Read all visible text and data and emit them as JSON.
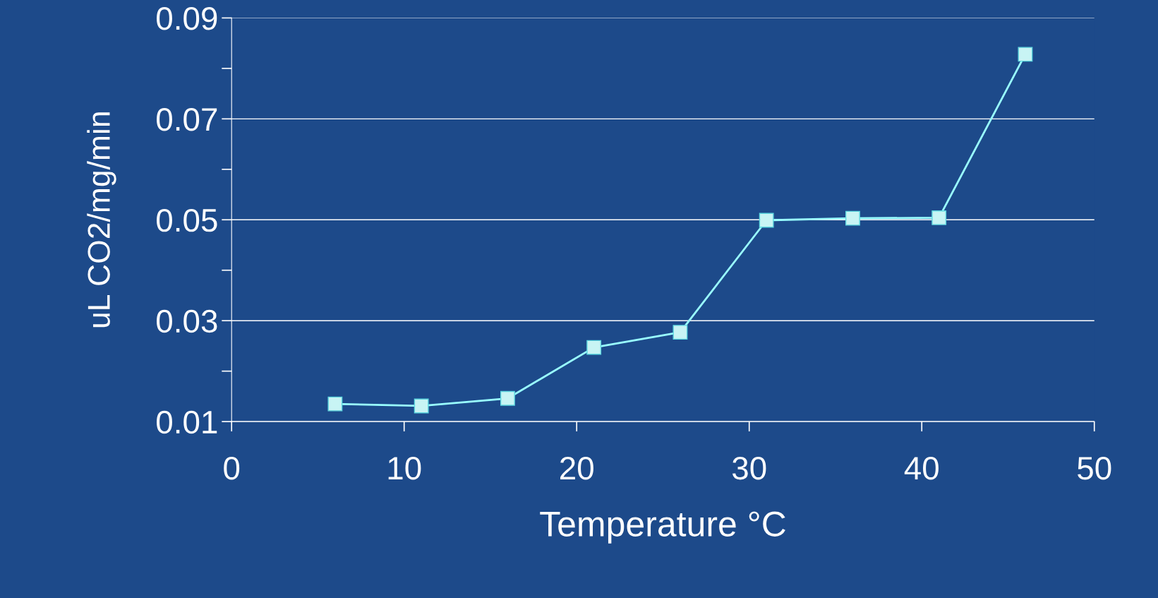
{
  "chart_data": {
    "type": "line",
    "xlabel": "Temperature °C",
    "ylabel": "uL CO2/mg/min",
    "x": [
      6,
      11,
      16,
      21,
      26,
      31,
      36,
      41,
      46
    ],
    "series": [
      {
        "color": "#99ffff",
        "values": [
          0.0135,
          0.0131,
          0.0146,
          0.0247,
          0.0277,
          0.0499,
          0.0503,
          0.0504,
          0.0828
        ]
      }
    ],
    "xlim": [
      0,
      50
    ],
    "xticks": [
      0,
      10,
      20,
      30,
      40,
      50
    ],
    "ylim": [
      0.01,
      0.09
    ],
    "yticks": [
      {
        "value": 0.01,
        "label": "0.01"
      },
      {
        "value": 0.02,
        "label": null
      },
      {
        "value": 0.03,
        "label": "0.03"
      },
      {
        "value": 0.04,
        "label": null
      },
      {
        "value": 0.05,
        "label": "0.05"
      },
      {
        "value": 0.06,
        "label": null
      },
      {
        "value": 0.07,
        "label": "0.07"
      },
      {
        "value": 0.08,
        "label": null
      },
      {
        "value": 0.09,
        "label": "0.09"
      }
    ],
    "grid": "y",
    "marker": "square",
    "line_style": "solid",
    "legend": false
  }
}
